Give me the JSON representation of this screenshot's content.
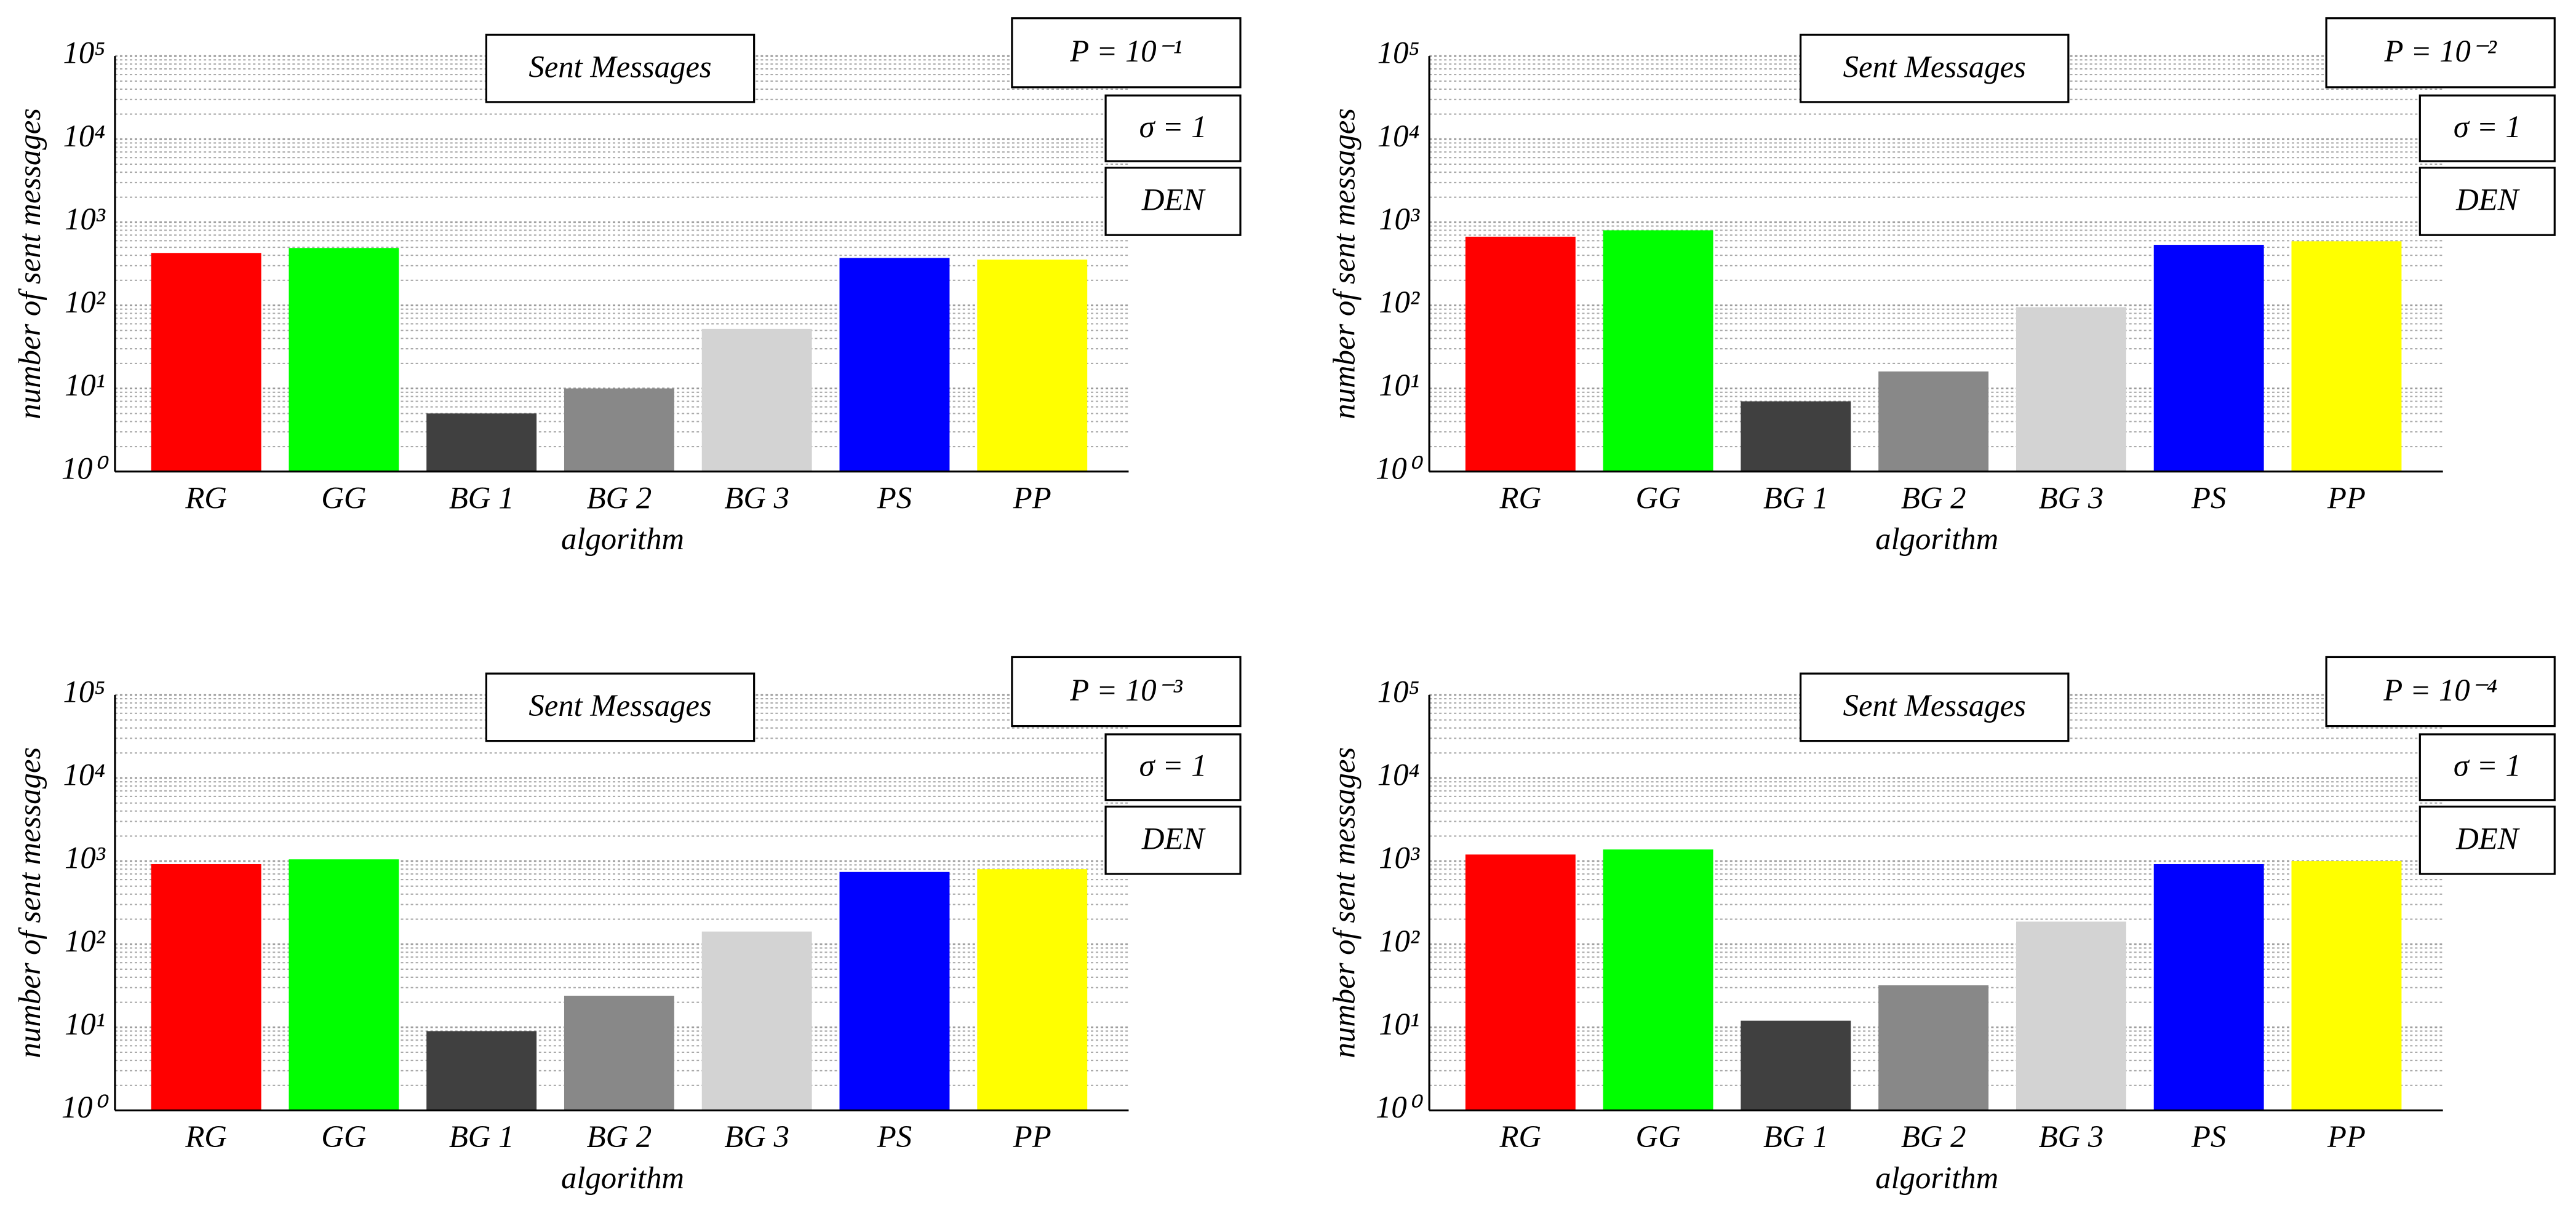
{
  "chart_data": [
    {
      "type": "bar",
      "title": "Sent Messages",
      "annotations": [
        "P = 10⁻¹",
        "σ = 1",
        "DEN"
      ],
      "x_label": "algorithm",
      "y_label": "number of sent messages",
      "categories": [
        "RG",
        "GG",
        "BG 1",
        "BG 2",
        "BG 3",
        "PS",
        "PP"
      ],
      "values": [
        427,
        490,
        5,
        10,
        52,
        372,
        355
      ],
      "colors": [
        "#ff0000",
        "#00ff00",
        "#404040",
        "#888888",
        "#d3d3d3",
        "#0000ff",
        "#ffff00"
      ],
      "log_scale": true,
      "minor_grid": true,
      "ylim": [
        1,
        100000
      ],
      "yticks": [
        {
          "value": 1,
          "label": "10⁰"
        },
        {
          "value": 10,
          "label": "10¹"
        },
        {
          "value": 100,
          "label": "10²"
        },
        {
          "value": 1000,
          "label": "10³"
        },
        {
          "value": 10000,
          "label": "10⁴"
        },
        {
          "value": 100000,
          "label": "10⁵"
        }
      ]
    },
    {
      "type": "bar",
      "title": "Sent Messages",
      "annotations": [
        "P = 10⁻²",
        "σ = 1",
        "DEN"
      ],
      "x_label": "algorithm",
      "y_label": "number of sent messages",
      "categories": [
        "RG",
        "GG",
        "BG 1",
        "BG 2",
        "BG 3",
        "PS",
        "PP"
      ],
      "values": [
        670,
        800,
        7,
        16,
        95,
        535,
        590
      ],
      "colors": [
        "#ff0000",
        "#00ff00",
        "#404040",
        "#888888",
        "#d3d3d3",
        "#0000ff",
        "#ffff00"
      ],
      "log_scale": true,
      "minor_grid": true,
      "ylim": [
        1,
        100000
      ],
      "yticks": [
        {
          "value": 1,
          "label": "10⁰"
        },
        {
          "value": 10,
          "label": "10¹"
        },
        {
          "value": 100,
          "label": "10²"
        },
        {
          "value": 1000,
          "label": "10³"
        },
        {
          "value": 10000,
          "label": "10⁴"
        },
        {
          "value": 100000,
          "label": "10⁵"
        }
      ]
    },
    {
      "type": "bar",
      "title": "Sent Messages",
      "annotations": [
        "P = 10⁻³",
        "σ = 1",
        "DEN"
      ],
      "x_label": "algorithm",
      "y_label": "number of sent messages",
      "categories": [
        "RG",
        "GG",
        "BG 1",
        "BG 2",
        "BG 3",
        "PS",
        "PP"
      ],
      "values": [
        920,
        1050,
        9,
        24,
        142,
        740,
        800
      ],
      "colors": [
        "#ff0000",
        "#00ff00",
        "#404040",
        "#888888",
        "#d3d3d3",
        "#0000ff",
        "#ffff00"
      ],
      "log_scale": true,
      "minor_grid": true,
      "ylim": [
        1,
        100000
      ],
      "yticks": [
        {
          "value": 1,
          "label": "10⁰"
        },
        {
          "value": 10,
          "label": "10¹"
        },
        {
          "value": 100,
          "label": "10²"
        },
        {
          "value": 1000,
          "label": "10³"
        },
        {
          "value": 10000,
          "label": "10⁴"
        },
        {
          "value": 100000,
          "label": "10⁵"
        }
      ]
    },
    {
      "type": "bar",
      "title": "Sent Messages",
      "annotations": [
        "P = 10⁻⁴",
        "σ = 1",
        "DEN"
      ],
      "x_label": "algorithm",
      "y_label": "number of sent messages",
      "categories": [
        "RG",
        "GG",
        "BG 1",
        "BG 2",
        "BG 3",
        "PS",
        "PP"
      ],
      "values": [
        1200,
        1380,
        12,
        32,
        187,
        920,
        1000
      ],
      "colors": [
        "#ff0000",
        "#00ff00",
        "#404040",
        "#888888",
        "#d3d3d3",
        "#0000ff",
        "#ffff00"
      ],
      "log_scale": true,
      "minor_grid": true,
      "ylim": [
        1,
        100000
      ],
      "yticks": [
        {
          "value": 1,
          "label": "10⁰"
        },
        {
          "value": 10,
          "label": "10¹"
        },
        {
          "value": 100,
          "label": "10²"
        },
        {
          "value": 1000,
          "label": "10³"
        },
        {
          "value": 10000,
          "label": "10⁴"
        },
        {
          "value": 100000,
          "label": "10⁵"
        }
      ]
    }
  ]
}
